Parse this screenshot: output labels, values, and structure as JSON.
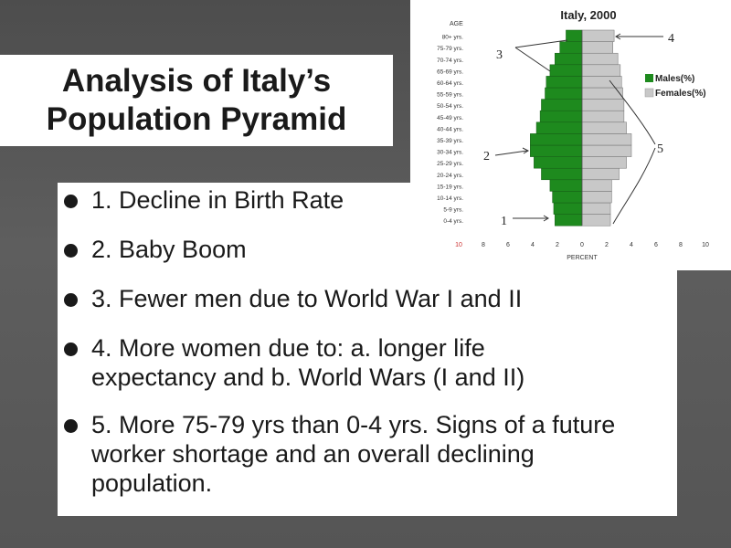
{
  "slide": {
    "title_line1": "Analysis of Italy’s",
    "title_line2": "Population Pyramid",
    "bullets": [
      "1. Decline in Birth Rate",
      "2. Baby Boom",
      "3. Fewer men due to World War I and II",
      "4. More women due to: a. longer life expectancy and b. World Wars (I and II)",
      "5. More 75-79 yrs than 0-4 yrs. Signs of a future worker shortage and an overall declining population."
    ]
  },
  "chart_data": {
    "type": "bar",
    "orientation": "horizontal-pyramid",
    "title": "Italy, 2000",
    "ylabel": "AGE",
    "xlabel": "PERCENT",
    "xlim": [
      -10,
      10
    ],
    "xticks": [
      "10",
      "8",
      "6",
      "4",
      "2",
      "0",
      "2",
      "4",
      "6",
      "8",
      "10"
    ],
    "categories": [
      "0-4 yrs.",
      "5-9 yrs.",
      "10-14 yrs.",
      "15-19 yrs.",
      "20-24 yrs.",
      "25-29 yrs.",
      "30-34 yrs.",
      "35-39 yrs.",
      "40-44 yrs.",
      "45-49 yrs.",
      "50-54 yrs.",
      "55-59 yrs.",
      "60-64 yrs.",
      "65-69 yrs.",
      "70-74 yrs.",
      "75-79 yrs.",
      "80+ yrs."
    ],
    "series": [
      {
        "name": "Males(%)",
        "color": "#1e8a1e",
        "values": [
          2.2,
          2.3,
          2.4,
          2.6,
          3.3,
          3.9,
          4.2,
          4.2,
          3.7,
          3.4,
          3.3,
          3.0,
          2.9,
          2.6,
          2.2,
          1.8,
          1.3
        ]
      },
      {
        "name": "Females(%)",
        "color": "#c8c8c8",
        "values": [
          2.3,
          2.3,
          2.4,
          2.4,
          3.0,
          3.6,
          4.0,
          4.0,
          3.6,
          3.4,
          3.4,
          3.3,
          3.2,
          3.1,
          2.9,
          2.5,
          2.6
        ]
      }
    ],
    "annotations": [
      "1",
      "2",
      "3",
      "4",
      "5"
    ]
  }
}
